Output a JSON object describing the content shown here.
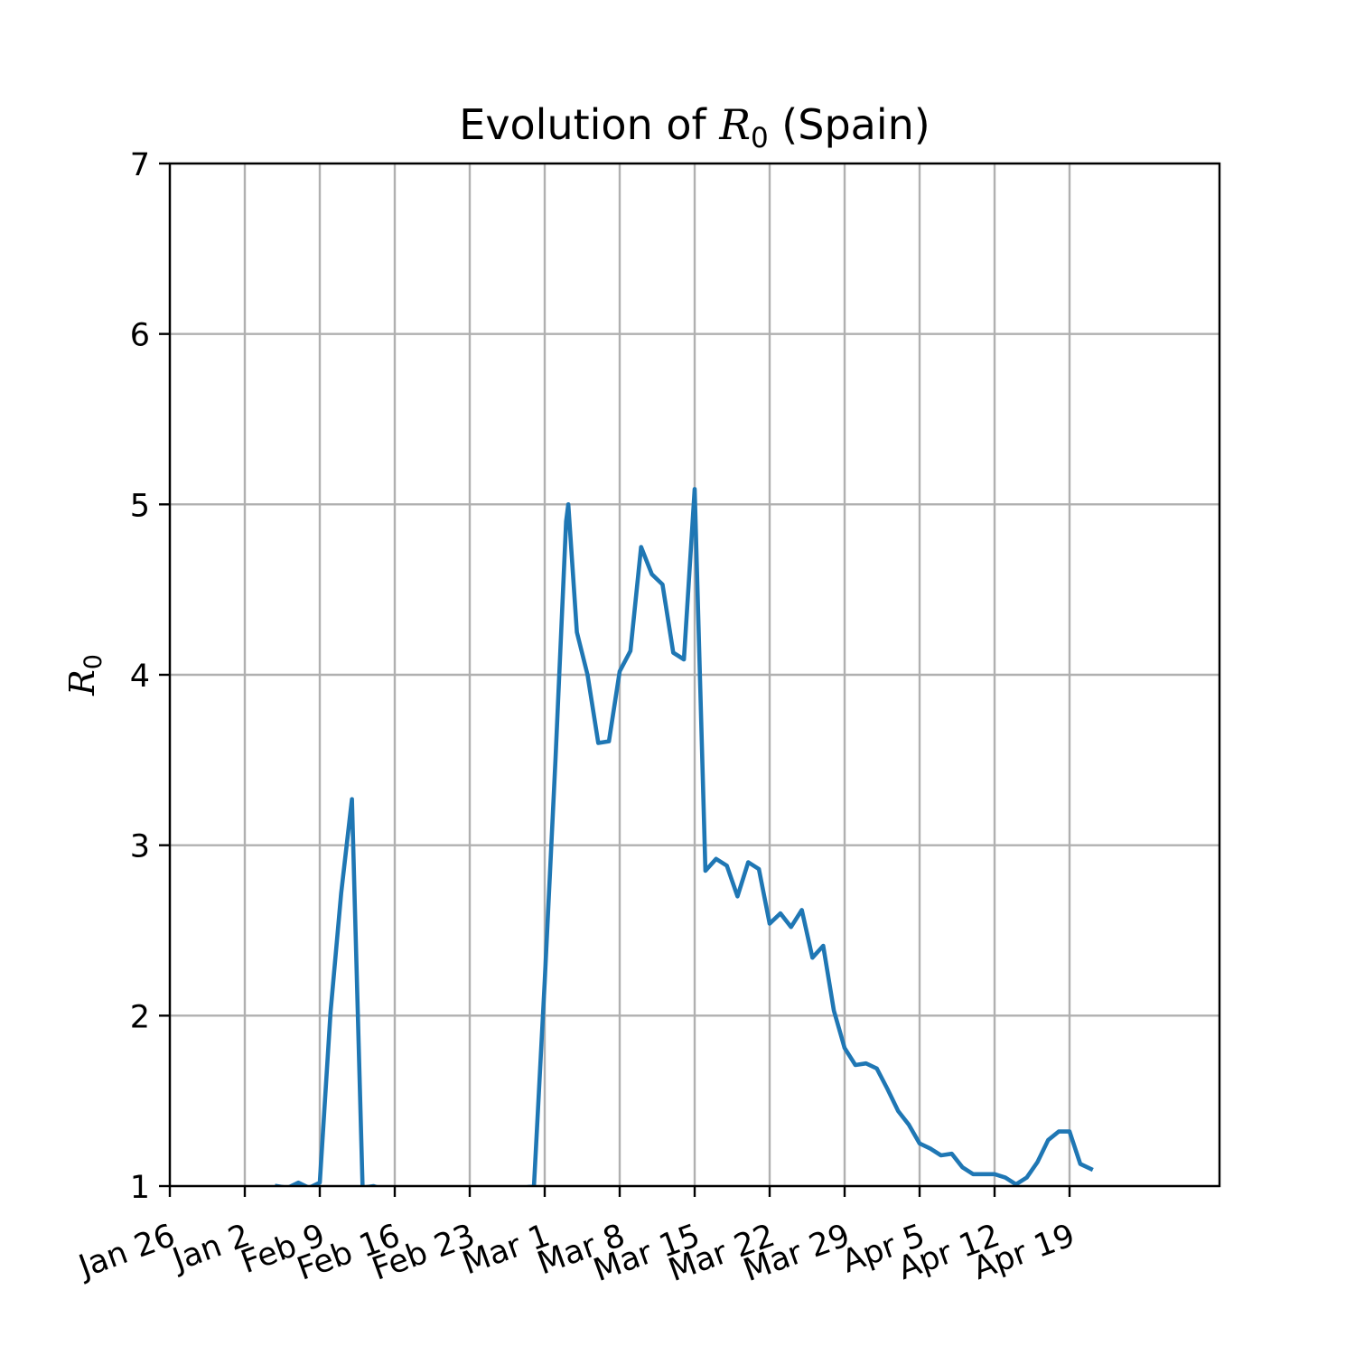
{
  "chart_data": {
    "type": "line",
    "title": {
      "prefix": "Evolution of ",
      "symbol": "R",
      "subscript": "0",
      "suffix": " (Spain)"
    },
    "ylabel": {
      "symbol": "R",
      "subscript": "0"
    },
    "xlabel": "",
    "ylim": [
      1,
      7
    ],
    "yticks": [
      1,
      2,
      3,
      4,
      5,
      6,
      7
    ],
    "xlim": [
      -7,
      91
    ],
    "xticks": [
      {
        "x": -7,
        "label": "Jan 26"
      },
      {
        "x": 0,
        "label": "Jan 2"
      },
      {
        "x": 7,
        "label": "Feb 9"
      },
      {
        "x": 14,
        "label": "Feb 16"
      },
      {
        "x": 21,
        "label": "Feb 23"
      },
      {
        "x": 28,
        "label": "Mar 1"
      },
      {
        "x": 35,
        "label": "Mar 8"
      },
      {
        "x": 42,
        "label": "Mar 15"
      },
      {
        "x": 49,
        "label": "Mar 22"
      },
      {
        "x": 56,
        "label": "Mar 29"
      },
      {
        "x": 63,
        "label": "Apr 5"
      },
      {
        "x": 70,
        "label": "Apr 12"
      },
      {
        "x": 77,
        "label": "Apr 19"
      }
    ],
    "grid": true,
    "colors": {
      "series": "#1f77b4",
      "grid": "#b0b0b0"
    },
    "series": [
      {
        "values": [
          [
            3,
            1.0
          ],
          [
            4,
            0.99
          ],
          [
            5,
            1.02
          ],
          [
            6,
            0.99
          ],
          [
            7,
            1.02
          ],
          [
            8,
            2.02
          ],
          [
            9,
            2.72
          ],
          [
            10,
            3.27
          ],
          [
            11,
            0.99
          ],
          [
            12,
            1.0
          ],
          [
            13,
            0.98
          ],
          [
            14,
            0.97
          ],
          [
            15,
            0.96
          ],
          [
            16,
            0.95
          ],
          [
            17,
            0.95
          ],
          [
            18,
            0.95
          ],
          [
            19,
            0.95
          ],
          [
            20,
            0.95
          ],
          [
            21,
            0.95
          ],
          [
            22,
            0.95
          ],
          [
            23,
            0.96
          ],
          [
            24,
            0.97
          ],
          [
            25,
            0.98
          ],
          [
            26,
            0.99
          ],
          [
            27,
            1.0
          ],
          [
            28,
            2.2
          ],
          [
            29,
            3.5
          ],
          [
            30,
            4.9
          ],
          [
            30.2,
            5.0
          ],
          [
            31,
            4.25
          ],
          [
            32,
            4.0
          ],
          [
            33,
            3.6
          ],
          [
            34,
            3.61
          ],
          [
            35,
            4.02
          ],
          [
            36,
            4.14
          ],
          [
            37,
            4.75
          ],
          [
            38,
            4.59
          ],
          [
            39,
            4.53
          ],
          [
            40,
            4.13
          ],
          [
            41,
            4.09
          ],
          [
            42,
            5.09
          ],
          [
            43,
            2.85
          ],
          [
            44,
            2.92
          ],
          [
            45,
            2.88
          ],
          [
            46,
            2.7
          ],
          [
            47,
            2.9
          ],
          [
            48,
            2.86
          ],
          [
            49,
            2.54
          ],
          [
            50,
            2.6
          ],
          [
            51,
            2.52
          ],
          [
            52,
            2.62
          ],
          [
            53,
            2.34
          ],
          [
            54,
            2.41
          ],
          [
            55,
            2.03
          ],
          [
            56,
            1.81
          ],
          [
            57,
            1.71
          ],
          [
            58,
            1.72
          ],
          [
            59,
            1.69
          ],
          [
            60,
            1.57
          ],
          [
            61,
            1.44
          ],
          [
            62,
            1.36
          ],
          [
            63,
            1.25
          ],
          [
            64,
            1.22
          ],
          [
            65,
            1.18
          ],
          [
            66,
            1.19
          ],
          [
            67,
            1.11
          ],
          [
            68,
            1.07
          ],
          [
            69,
            1.07
          ],
          [
            70,
            1.07
          ],
          [
            71,
            1.05
          ],
          [
            72,
            1.01
          ],
          [
            73,
            1.05
          ],
          [
            74,
            1.14
          ],
          [
            75,
            1.27
          ],
          [
            76,
            1.32
          ],
          [
            77,
            1.32
          ],
          [
            78,
            1.13
          ],
          [
            79,
            1.1
          ]
        ]
      }
    ]
  }
}
